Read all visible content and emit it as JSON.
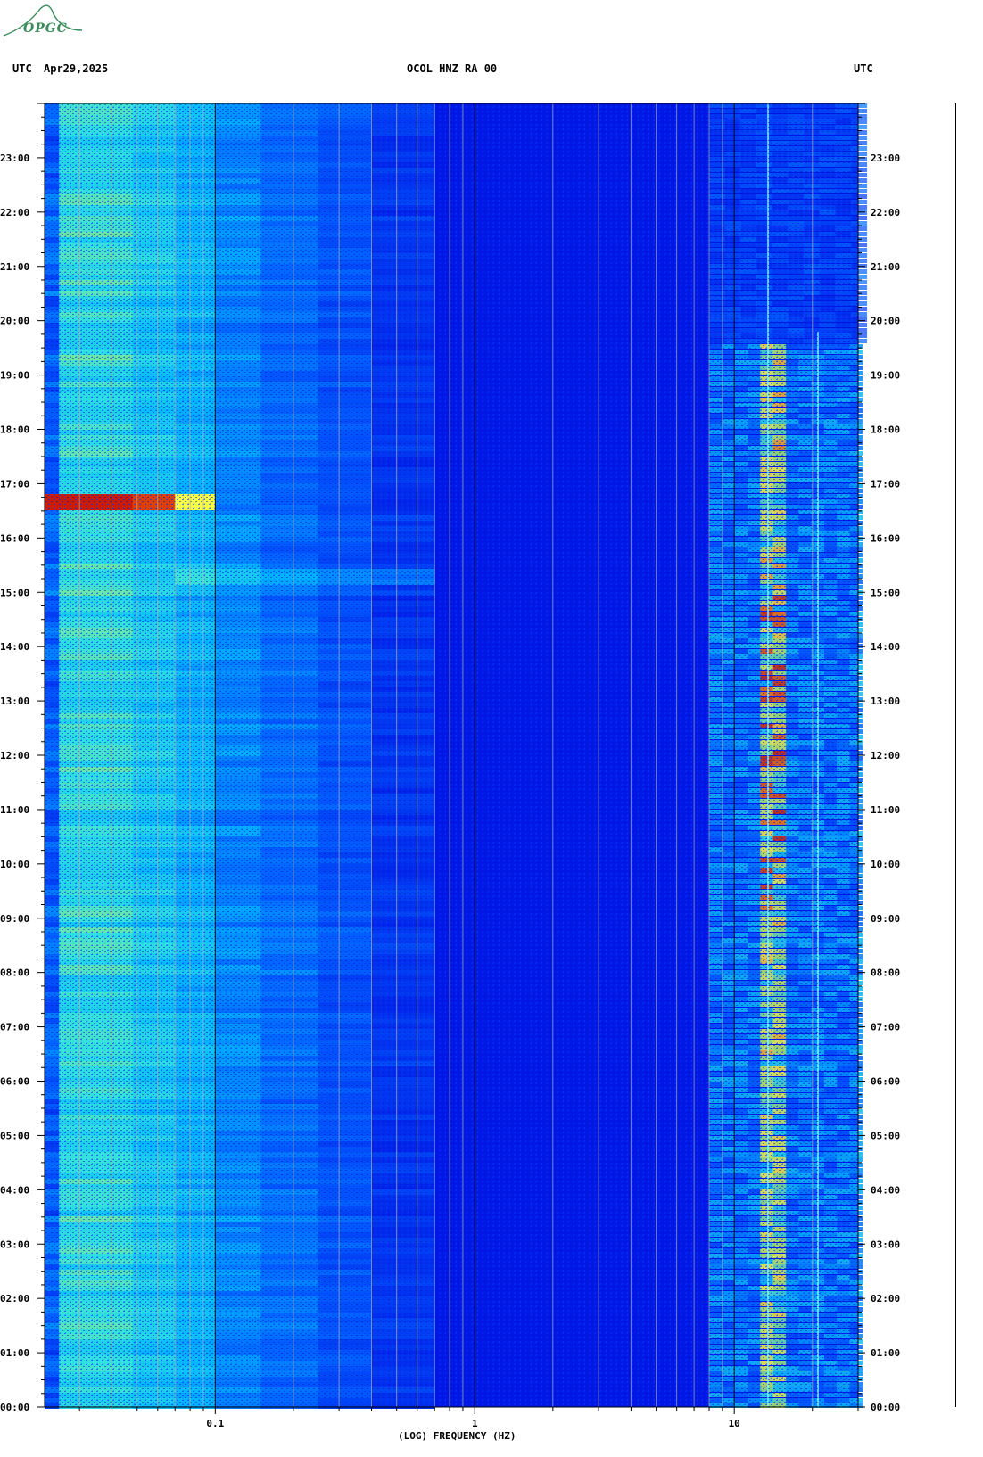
{
  "header": {
    "left_tz": "UTC",
    "date": "Apr29,2025",
    "station": "OCOL HNZ RA 00",
    "right_tz": "UTC"
  },
  "logo": {
    "text": "OPGC"
  },
  "chart_data": {
    "type": "heatmap",
    "title": "OCOL HNZ RA 00",
    "xlabel": "(LOG) FREQUENCY (HZ)",
    "ylabel": "UTC",
    "x_scale": "log",
    "xlim": [
      0.022,
      30
    ],
    "x_ticks": [
      {
        "value": 0.1,
        "label": "0.1"
      },
      {
        "value": 1,
        "label": "1"
      },
      {
        "value": 10,
        "label": "10"
      }
    ],
    "y_ticks": [
      "00:00",
      "01:00",
      "02:00",
      "03:00",
      "04:00",
      "05:00",
      "06:00",
      "07:00",
      "08:00",
      "09:00",
      "10:00",
      "11:00",
      "12:00",
      "13:00",
      "14:00",
      "15:00",
      "16:00",
      "17:00",
      "18:00",
      "19:00",
      "20:00",
      "21:00",
      "22:00",
      "23:00"
    ],
    "ylim_hours": [
      0,
      24
    ],
    "colors": {
      "low": "#0018e6",
      "mid": "#00c8ff",
      "high": "#ffff40",
      "max": "#c00000"
    },
    "features": [
      {
        "type": "microseism_band",
        "f_start": 0.025,
        "f_end": 0.1,
        "hours": [
          0,
          24
        ]
      },
      {
        "type": "event",
        "f_start": 0.025,
        "f_end": 0.1,
        "hours": [
          16.55,
          16.85
        ]
      },
      {
        "type": "activity_band",
        "f_start": 8,
        "f_end": 30,
        "hours": [
          0,
          19.6
        ]
      },
      {
        "type": "spectral_line",
        "freq": 13.5,
        "hours": [
          0,
          24
        ]
      },
      {
        "type": "spectral_line",
        "freq": 21,
        "hours": [
          0,
          19.8
        ]
      }
    ]
  }
}
